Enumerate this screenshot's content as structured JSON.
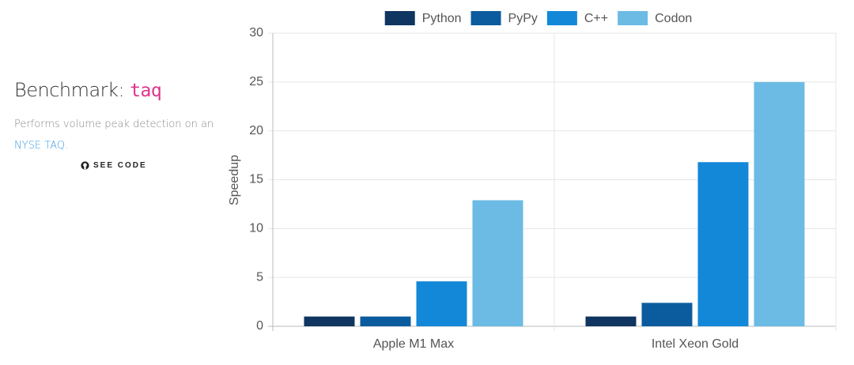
{
  "sidebar": {
    "title": "Benchmark:",
    "code": "taq",
    "description": "Performs volume peak detection on an",
    "link": "NYSE TAQ.",
    "button": "SEE CODE"
  },
  "chart_data": {
    "type": "bar",
    "y_label": "Speedup",
    "categories": [
      "Apple M1 Max",
      "Intel Xeon Gold"
    ],
    "series": [
      {
        "name": "Python",
        "color": "#0f3560",
        "values": [
          1,
          1
        ]
      },
      {
        "name": "PyPy",
        "color": "#0b5c9e",
        "values": [
          1,
          2.4
        ]
      },
      {
        "name": "C++",
        "color": "#1388d8",
        "values": [
          4.6,
          16.8
        ]
      },
      {
        "name": "Codon",
        "color": "#6bbbe4",
        "values": [
          12.9,
          25
        ]
      }
    ],
    "ylim": [
      0,
      30
    ],
    "yticks": [
      0,
      5,
      10,
      15,
      20,
      25,
      30
    ],
    "grid": true,
    "legend": "top"
  }
}
